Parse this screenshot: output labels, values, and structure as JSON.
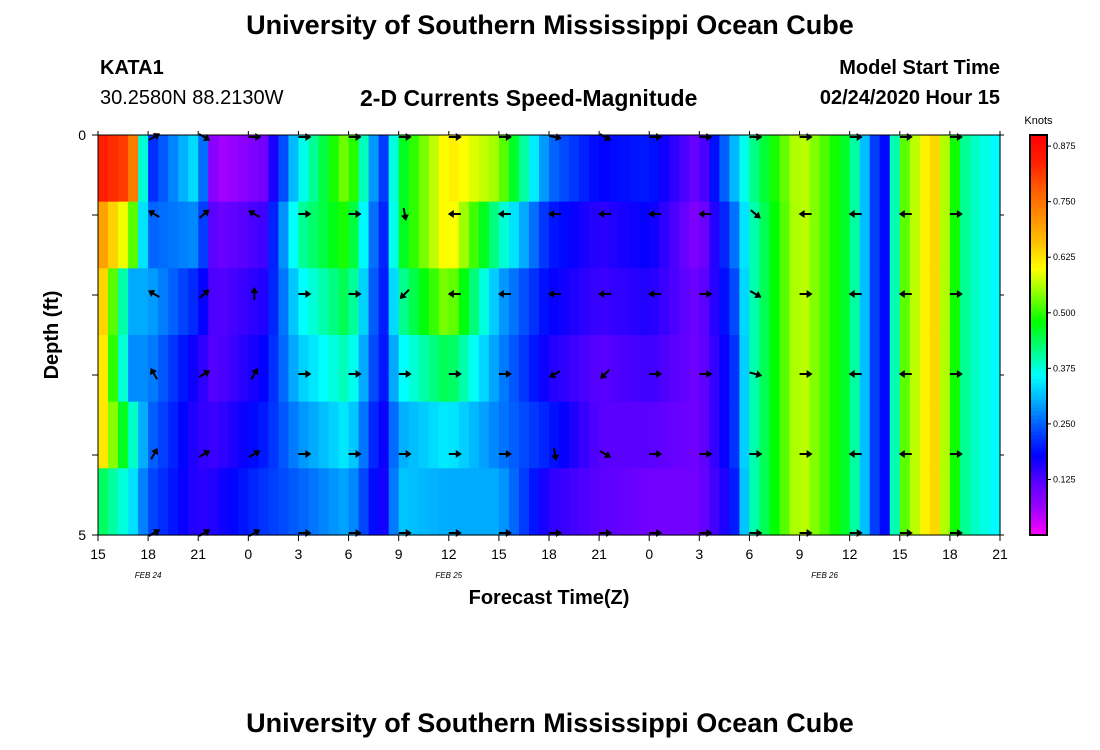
{
  "header": {
    "title": "University of Southern Mississippi Ocean Cube",
    "station": "KATA1",
    "coords": "30.2580N 88.2130W",
    "subtitle": "2-D Currents Speed-Magnitude",
    "model_label": "Model Start Time",
    "model_time": "02/24/2020 Hour 15"
  },
  "footer": {
    "title": "University of Southern Mississippi Ocean Cube"
  },
  "colors": {
    "arrow": "#000000",
    "frame": "#000000",
    "scale": [
      "#ff00ff",
      "#a000ff",
      "#5a00ff",
      "#0000ff",
      "#0050ff",
      "#00aaff",
      "#00ffff",
      "#00ff80",
      "#00ff00",
      "#80ff00",
      "#ffff00",
      "#ffc000",
      "#ff8c00",
      "#ff5a00",
      "#ff2000",
      "#ff0000"
    ]
  },
  "chart_data": {
    "type": "heatmap",
    "xlabel": "Forecast Time(Z)",
    "ylabel": "Depth (ft)",
    "x_tick_labels": [
      "15",
      "18",
      "21",
      "0",
      "3",
      "6",
      "9",
      "12",
      "15",
      "18",
      "21",
      "0",
      "3",
      "6",
      "9",
      "12",
      "15",
      "18",
      "21"
    ],
    "day_labels": [
      {
        "label": "FEB 24",
        "at_hour": 3
      },
      {
        "label": "FEB 25",
        "at_hour": 21
      },
      {
        "label": "FEB 26",
        "at_hour": 43.5
      }
    ],
    "x_range_hours": [
      0,
      54
    ],
    "y_tick_labels": [
      "0",
      "5"
    ],
    "y_range": [
      0,
      5
    ],
    "colorbar": {
      "unit": "Knots",
      "min": 0,
      "max": 0.9,
      "ticks": [
        "0.125",
        "0.250",
        "0.375",
        "0.500",
        "0.625",
        "0.750",
        "0.875"
      ],
      "tick_values": [
        0.125,
        0.25,
        0.375,
        0.5,
        0.625,
        0.75,
        0.875
      ]
    },
    "depth_rows": [
      0,
      1,
      2,
      3,
      4,
      5
    ],
    "speed_keyframes": [
      {
        "hour": 0,
        "values": [
          0.85,
          0.72,
          0.7,
          0.68,
          0.66,
          0.45
        ]
      },
      {
        "hour": 2,
        "values": [
          0.8,
          0.55,
          0.3,
          0.28,
          0.4,
          0.35
        ]
      },
      {
        "hour": 3,
        "values": [
          0.2,
          0.25,
          0.3,
          0.28,
          0.26,
          0.24
        ]
      },
      {
        "hour": 6,
        "values": [
          0.35,
          0.28,
          0.2,
          0.16,
          0.15,
          0.15
        ]
      },
      {
        "hour": 7,
        "values": [
          0.05,
          0.1,
          0.12,
          0.12,
          0.14,
          0.16
        ]
      },
      {
        "hour": 10,
        "values": [
          0.1,
          0.14,
          0.16,
          0.18,
          0.2,
          0.22
        ]
      },
      {
        "hour": 12,
        "values": [
          0.35,
          0.4,
          0.35,
          0.32,
          0.28,
          0.25
        ]
      },
      {
        "hour": 15,
        "values": [
          0.55,
          0.5,
          0.45,
          0.4,
          0.35,
          0.3
        ]
      },
      {
        "hour": 17,
        "values": [
          0.2,
          0.18,
          0.18,
          0.18,
          0.16,
          0.15
        ]
      },
      {
        "hour": 18,
        "values": [
          0.45,
          0.45,
          0.4,
          0.35,
          0.3,
          0.32
        ]
      },
      {
        "hour": 21,
        "values": [
          0.62,
          0.62,
          0.55,
          0.45,
          0.35,
          0.3
        ]
      },
      {
        "hour": 24,
        "values": [
          0.55,
          0.4,
          0.3,
          0.28,
          0.27,
          0.3
        ]
      },
      {
        "hour": 27,
        "values": [
          0.26,
          0.2,
          0.18,
          0.16,
          0.2,
          0.15
        ]
      },
      {
        "hour": 30,
        "values": [
          0.18,
          0.15,
          0.14,
          0.12,
          0.12,
          0.12
        ]
      },
      {
        "hour": 33,
        "values": [
          0.2,
          0.18,
          0.16,
          0.14,
          0.12,
          0.1
        ]
      },
      {
        "hour": 36,
        "values": [
          0.1,
          0.08,
          0.1,
          0.1,
          0.1,
          0.1
        ]
      },
      {
        "hour": 38,
        "values": [
          0.3,
          0.25,
          0.22,
          0.2,
          0.2,
          0.18
        ]
      },
      {
        "hour": 39,
        "values": [
          0.4,
          0.38,
          0.38,
          0.38,
          0.38,
          0.38
        ]
      },
      {
        "hour": 42,
        "values": [
          0.58,
          0.58,
          0.58,
          0.58,
          0.58,
          0.58
        ]
      },
      {
        "hour": 45,
        "values": [
          0.45,
          0.45,
          0.45,
          0.45,
          0.45,
          0.45
        ]
      },
      {
        "hour": 47,
        "values": [
          0.15,
          0.15,
          0.15,
          0.15,
          0.15,
          0.15
        ]
      },
      {
        "hour": 48,
        "values": [
          0.5,
          0.5,
          0.5,
          0.5,
          0.5,
          0.5
        ]
      },
      {
        "hour": 50,
        "values": [
          0.65,
          0.65,
          0.65,
          0.65,
          0.65,
          0.65
        ]
      },
      {
        "hour": 52,
        "values": [
          0.4,
          0.4,
          0.4,
          0.4,
          0.4,
          0.4
        ]
      },
      {
        "hour": 54,
        "values": [
          0.35,
          0.35,
          0.35,
          0.35,
          0.35,
          0.35
        ]
      }
    ],
    "arrow_hours": [
      3,
      6,
      9,
      12,
      15,
      18,
      21,
      24,
      27,
      30,
      33,
      36,
      39,
      42,
      45,
      48,
      51
    ],
    "arrow_direction_deg_by_row": [
      [
        -30,
        30,
        0,
        0,
        0,
        0,
        0,
        0,
        10,
        30,
        0,
        0,
        0,
        0,
        0,
        0,
        0
      ],
      [
        -150,
        -40,
        -150,
        0,
        0,
        80,
        180,
        180,
        180,
        180,
        180,
        180,
        40,
        180,
        180,
        180,
        0
      ],
      [
        -150,
        -40,
        -90,
        0,
        0,
        135,
        180,
        180,
        180,
        180,
        180,
        0,
        30,
        0,
        180,
        180,
        0
      ],
      [
        -120,
        -30,
        -60,
        0,
        0,
        0,
        0,
        0,
        150,
        135,
        0,
        0,
        15,
        0,
        180,
        180,
        0
      ],
      [
        -60,
        -30,
        -30,
        0,
        0,
        0,
        0,
        0,
        80,
        30,
        0,
        0,
        0,
        0,
        180,
        180,
        0
      ],
      [
        -30,
        -30,
        -30,
        0,
        0,
        0,
        0,
        0,
        0,
        0,
        0,
        0,
        0,
        0,
        0,
        0,
        0
      ]
    ]
  }
}
